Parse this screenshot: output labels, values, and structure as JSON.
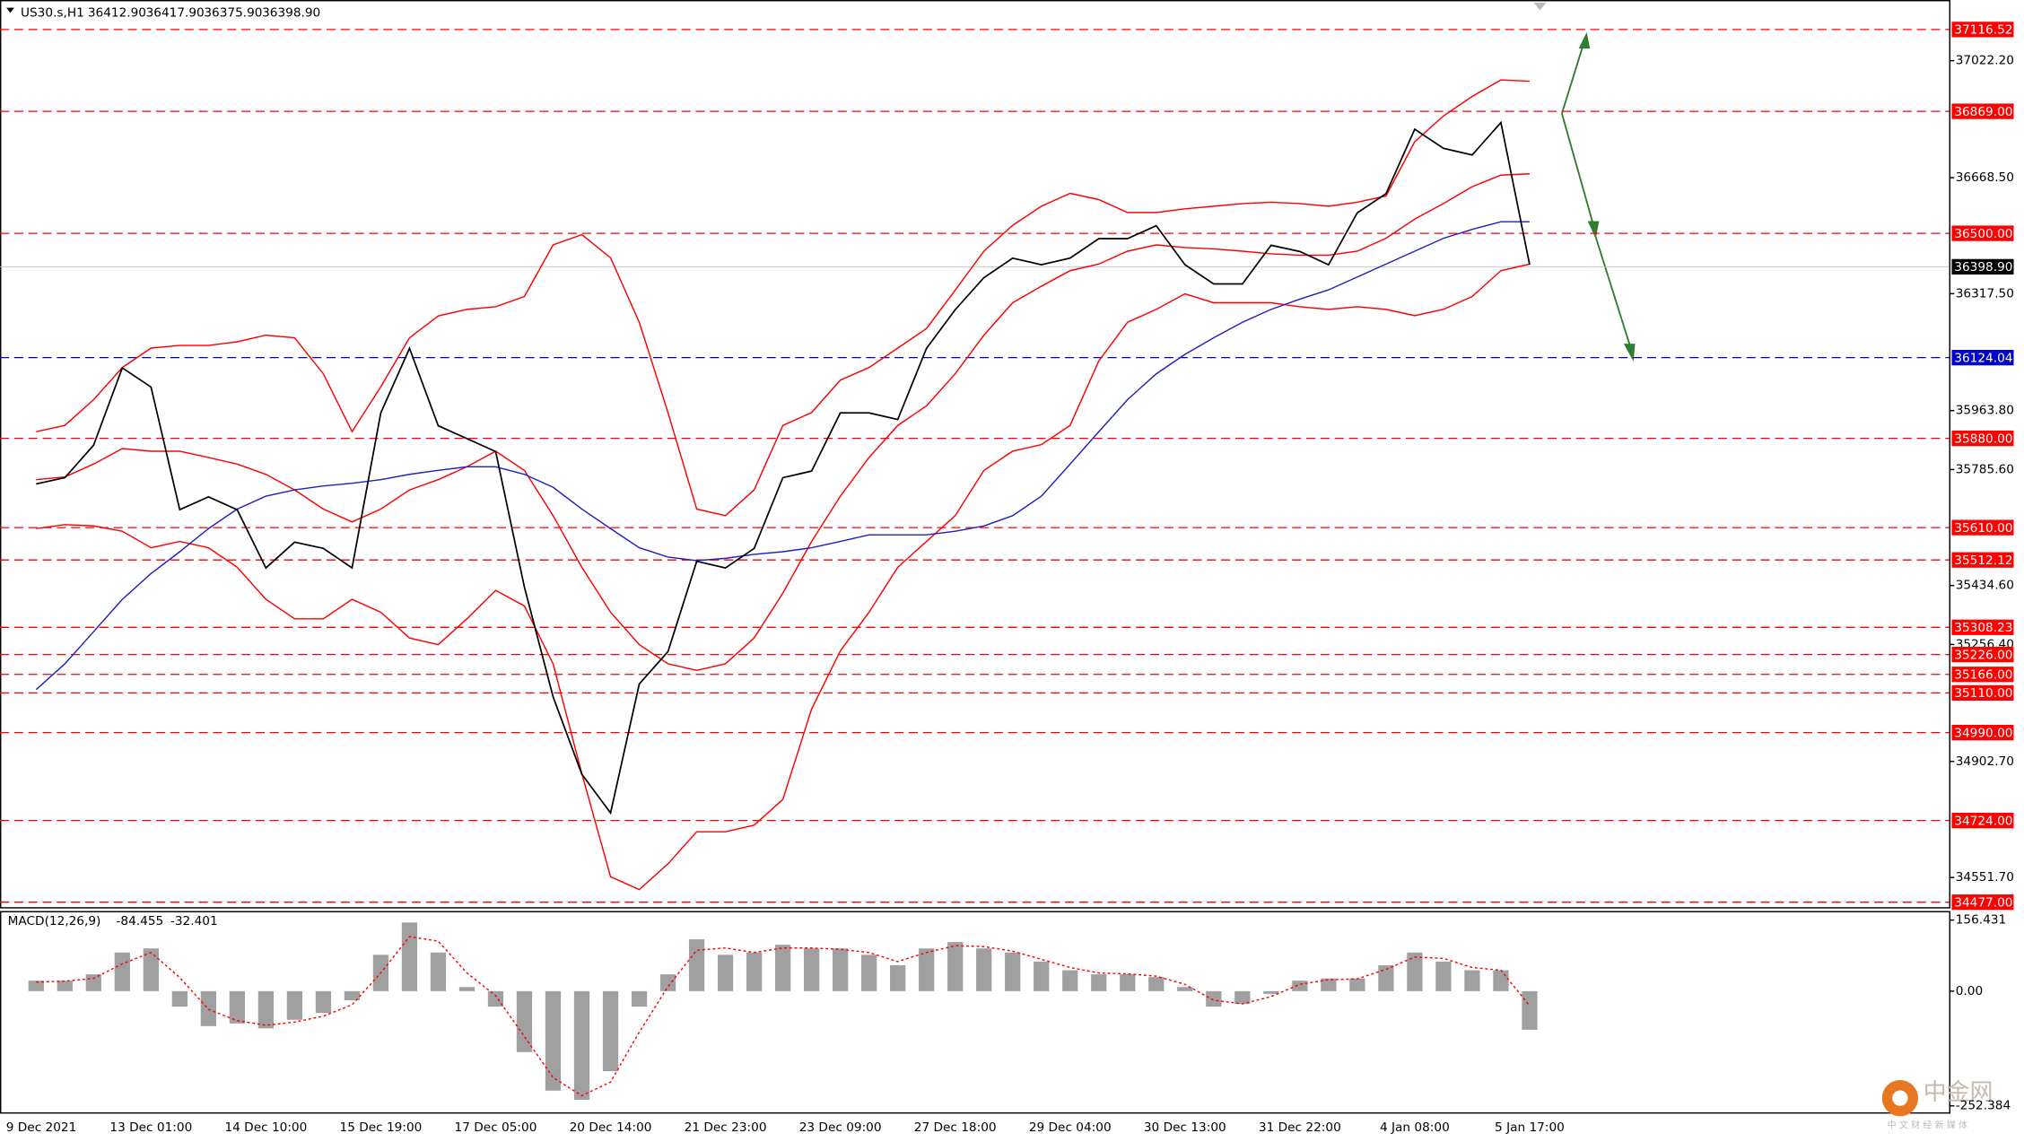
{
  "chart_data": [
    {
      "type": "line",
      "title": "US30.s,H1",
      "ohlc": [
        {
          "value": 36412.9,
          "label": "36412.90"
        },
        {
          "value": 36417.9,
          "label": "36417.90"
        },
        {
          "value": 36375.9,
          "label": "36375.90"
        },
        {
          "value": 36398.9,
          "label": "36398.90"
        }
      ],
      "categories": [
        "9 Dec 2021",
        null,
        null,
        null,
        "13 Dec 01:00",
        null,
        null,
        null,
        "14 Dec 10:00",
        null,
        null,
        null,
        "15 Dec 19:00",
        null,
        null,
        null,
        "17 Dec 05:00",
        null,
        null,
        null,
        "20 Dec 14:00",
        null,
        null,
        null,
        "21 Dec 23:00",
        null,
        null,
        null,
        "23 Dec 09:00",
        null,
        null,
        null,
        "27 Dec 18:00",
        null,
        null,
        null,
        "29 Dec 04:00",
        null,
        null,
        null,
        "30 Dec 13:00",
        null,
        null,
        null,
        "31 Dec 22:00",
        null,
        null,
        null,
        "4 Jan 08:00",
        null,
        null,
        null,
        "5 Jan 17:00"
      ],
      "series": [
        {
          "color": "#ff0000",
          "values": [
            35900,
            35919,
            35997,
            36094,
            36153,
            36161,
            36161,
            36172,
            36192,
            36184,
            36075,
            35900,
            36036,
            36184,
            36250,
            36270,
            36278,
            36309,
            36465,
            36496,
            36426,
            36231,
            35958,
            35666,
            35646,
            35724,
            35919,
            35958,
            36056,
            36094,
            36153,
            36212,
            36328,
            36446,
            36524,
            36582,
            36621,
            36602,
            36563,
            36563,
            36574,
            36582,
            36590,
            36594,
            36590,
            36582,
            36594,
            36613,
            36777,
            36855,
            36914,
            36964,
            36960
          ]
        },
        {
          "color": "#ff0000",
          "values": [
            35755,
            35763,
            35802,
            35849,
            35841,
            35841,
            35822,
            35802,
            35771,
            35724,
            35666,
            35627,
            35666,
            35724,
            35755,
            35794,
            35841,
            35783,
            35646,
            35490,
            35354,
            35256,
            35198,
            35178,
            35198,
            35276,
            35412,
            35568,
            35705,
            35822,
            35919,
            35978,
            36075,
            36192,
            36290,
            36340,
            36387,
            36407,
            36446,
            36465,
            36457,
            36453,
            36446,
            36438,
            36434,
            36434,
            36446,
            36485,
            36543,
            36590,
            36641,
            36676,
            36680
          ]
        },
        {
          "color": "#ff0000",
          "values": [
            35607,
            35619,
            35615,
            35599,
            35549,
            35568,
            35549,
            35490,
            35393,
            35334,
            35334,
            35393,
            35354,
            35276,
            35256,
            35334,
            35420,
            35373,
            35198,
            34866,
            34554,
            34515,
            34593,
            34690,
            34690,
            34710,
            34788,
            35061,
            35237,
            35354,
            35490,
            35568,
            35646,
            35783,
            35841,
            35861,
            35919,
            36114,
            36231,
            36270,
            36317,
            36290,
            36290,
            36290,
            36278,
            36270,
            36278,
            36270,
            36251,
            36270,
            36309,
            36387,
            36407
          ]
        },
        {
          "color": "#2020c0",
          "values": [
            35120,
            35198,
            35295,
            35393,
            35471,
            35537,
            35607,
            35666,
            35705,
            35724,
            35736,
            35744,
            35755,
            35771,
            35783,
            35794,
            35794,
            35771,
            35732,
            35666,
            35607,
            35549,
            35521,
            35510,
            35517,
            35529,
            35537,
            35549,
            35568,
            35588,
            35588,
            35588,
            35599,
            35615,
            35646,
            35705,
            35802,
            35900,
            35997,
            36075,
            36134,
            36184,
            36231,
            36270,
            36301,
            36329,
            36368,
            36407,
            36446,
            36485,
            36512,
            36535,
            36535
          ]
        },
        {
          "color": "#000000",
          "values": [
            35742,
            35761,
            35859,
            36093,
            36035,
            35664,
            35703,
            35664,
            35488,
            35566,
            35547,
            35488,
            35957,
            36152,
            35918,
            35879,
            35840,
            35430,
            35098,
            34864,
            34747,
            35137,
            35235,
            35508,
            35488,
            35547,
            35761,
            35781,
            35957,
            35957,
            35937,
            36152,
            36269,
            36366,
            36425,
            36405,
            36425,
            36484,
            36484,
            36523,
            36405,
            36347,
            36347,
            36464,
            36445,
            36405,
            36562,
            36620,
            36815,
            36757,
            36737,
            36835,
            36405
          ]
        }
      ],
      "ylim": [
        34462,
        37194
      ],
      "yticks": [
        {
          "value": 37022.2,
          "label": "37022.20"
        },
        {
          "value": 36668.5,
          "label": "36668.50"
        },
        {
          "value": 36317.5,
          "label": "36317.50"
        },
        {
          "value": 35963.8,
          "label": "35963.80"
        },
        {
          "value": 35785.6,
          "label": "35785.60"
        },
        {
          "value": 35434.6,
          "label": "35434.60"
        },
        {
          "value": 35256.4,
          "label": "35256.40"
        },
        {
          "value": 34902.7,
          "label": "34902.70"
        },
        {
          "value": 34551.7,
          "label": "34551.70"
        }
      ],
      "level_color": "#ff0000",
      "levels": [
        {
          "value": 37116.52,
          "label": "37116.52"
        },
        {
          "value": 36869,
          "label": "36869.00"
        },
        {
          "value": 36500,
          "label": "36500.00"
        },
        {
          "value": 35880,
          "label": "35880.00"
        },
        {
          "value": 35610,
          "label": "35610.00"
        },
        {
          "value": 35512.12,
          "label": "35512.12"
        },
        {
          "value": 35308.23,
          "label": "35308.23"
        },
        {
          "value": 35226,
          "label": "35226.00"
        },
        {
          "value": 35166,
          "label": "35166.00"
        },
        {
          "value": 35110,
          "label": "35110.00"
        },
        {
          "value": 34990,
          "label": "34990.00"
        },
        {
          "value": 34724,
          "label": "34724.00"
        },
        {
          "value": 34477,
          "label": "34477.00"
        }
      ],
      "support": {
        "value": 36124.04,
        "label": "36124.04",
        "color": "#0000cc"
      },
      "last_price": {
        "value": 36398.9,
        "label": "36398.90",
        "color": "#000000"
      }
    },
    {
      "type": "bar",
      "title": "MACD(12,26,9)",
      "readings": [
        -84.455,
        -32.401
      ],
      "color": "#a0a0a0",
      "values": [
        23,
        23,
        37,
        85,
        94,
        -34,
        -77,
        -71,
        -82,
        -63,
        -48,
        -20,
        80,
        151,
        85,
        9,
        -34,
        -134,
        -219,
        -239,
        -176,
        -34,
        37,
        114,
        80,
        85,
        102,
        94,
        94,
        80,
        57,
        94,
        108,
        94,
        85,
        65,
        46,
        37,
        37,
        31,
        9,
        -34,
        -28,
        -6,
        23,
        28,
        28,
        57,
        85,
        65,
        46,
        46,
        -85
      ],
      "signal": {
        "color": "#ff0000",
        "values": [
          20,
          22,
          28,
          60,
          85,
          30,
          -40,
          -65,
          -75,
          -68,
          -55,
          -30,
          40,
          120,
          110,
          40,
          -10,
          -100,
          -190,
          -230,
          -200,
          -90,
          10,
          90,
          95,
          85,
          95,
          95,
          92,
          85,
          65,
          85,
          100,
          98,
          88,
          70,
          52,
          40,
          38,
          33,
          15,
          -20,
          -28,
          -12,
          15,
          25,
          27,
          48,
          75,
          72,
          52,
          46,
          -32
        ]
      },
      "ylim": [
        -266.6,
        176.3
      ],
      "yticks": [
        156.431,
        {
          "value": 0,
          "label": "0.00"
        },
        -252.384
      ]
    }
  ],
  "watermark": {
    "brand": "中金网",
    "tagline": "中 文 财 经 新 媒 体"
  }
}
